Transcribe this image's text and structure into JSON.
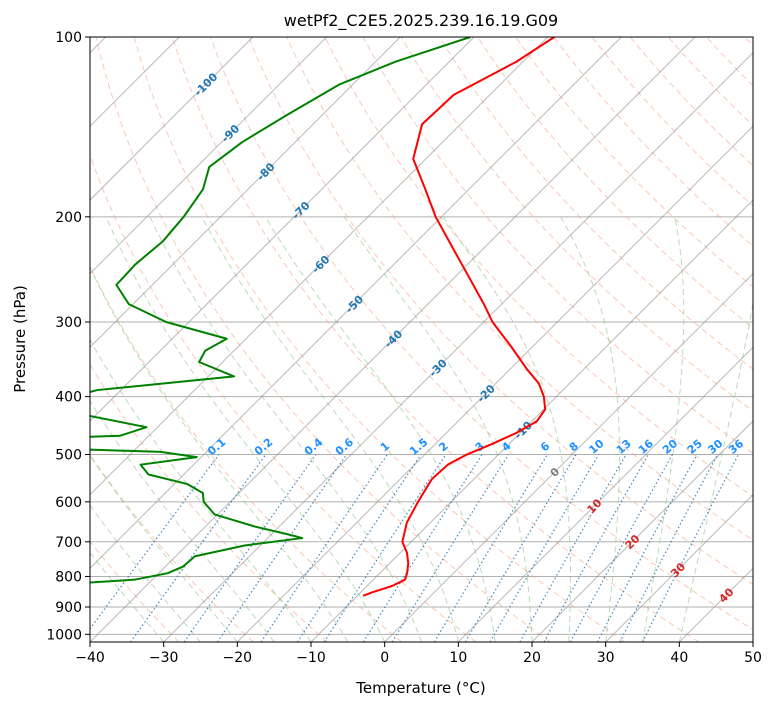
{
  "chart_data": {
    "type": "skew-t",
    "title": "wetPf2_C2E5.2025.239.16.19.G09",
    "xlabel": "Temperature (°C)",
    "ylabel": "Pressure (hPa)",
    "xlim": [
      -40,
      50
    ],
    "ylim": [
      1030,
      100
    ],
    "y_scale": "log",
    "grid": true,
    "x_ticks": [
      -40,
      -30,
      -20,
      -10,
      0,
      10,
      20,
      30,
      40,
      50
    ],
    "y_ticks": [
      100,
      200,
      300,
      400,
      500,
      600,
      700,
      800,
      900,
      1000
    ],
    "colors": {
      "temperature": "#ff0000",
      "dewpoint": "#008000",
      "dry_adiabat": "#f4a582",
      "moist_adiabat": "#7fbf7b",
      "mixing_ratio": "#1f77b4",
      "skewed_isotherm": "#8c8c8c",
      "mixing_label": "#1e90ff",
      "dewpoint_label": "#1f77b4",
      "temp_label": "#d62728"
    },
    "temperature_profile": {
      "pressure": [
        100,
        110,
        125,
        140,
        160,
        180,
        200,
        220,
        250,
        280,
        300,
        330,
        360,
        380,
        400,
        420,
        440,
        460,
        480,
        500,
        520,
        550,
        600,
        650,
        700,
        730,
        760,
        790,
        810,
        830,
        850,
        862
      ],
      "temperature": [
        -59.1,
        -60.9,
        -64.9,
        -65.2,
        -61.7,
        -55.9,
        -50.8,
        -45.6,
        -38.6,
        -32.4,
        -28.8,
        -22.9,
        -17.7,
        -14.2,
        -11.7,
        -9.8,
        -9.3,
        -10.5,
        -12.3,
        -14.3,
        -15.5,
        -15.7,
        -14.5,
        -13.2,
        -11.2,
        -9.1,
        -7.5,
        -6.3,
        -5.7,
        -6.6,
        -8.4,
        -9.2
      ]
    },
    "dewpoint_profile": {
      "pressure": [
        100,
        110,
        120,
        135,
        150,
        165,
        180,
        200,
        220,
        240,
        260,
        280,
        300,
        320,
        335,
        350,
        370,
        390,
        410,
        430,
        450,
        465,
        475,
        480,
        485,
        495,
        505,
        520,
        540,
        560,
        580,
        600,
        630,
        660,
        680,
        690,
        710,
        740,
        770,
        790,
        810,
        830,
        842,
        850,
        858,
        862
      ],
      "dewpoint": [
        -70.5,
        -77.3,
        -81.8,
        -84.8,
        -87.2,
        -88.3,
        -86.1,
        -85.0,
        -84.5,
        -85.1,
        -84.9,
        -80.6,
        -73.1,
        -62.6,
        -63.9,
        -63.2,
        -56.5,
        -73.2,
        -78.4,
        -71.2,
        -61.5,
        -63.9,
        -85.0,
        -88.0,
        -78.9,
        -56.2,
        -50.6,
        -57.2,
        -54.8,
        -48.3,
        -44.9,
        -43.6,
        -40.4,
        -33.3,
        -27.8,
        -25.3,
        -32.1,
        -37.4,
        -37.6,
        -38.8,
        -42.4,
        -55.3,
        -77.4,
        -81.5,
        -55.0,
        -47.8
      ]
    },
    "isotherm_labels": [
      "-100",
      "-90",
      "-80",
      "-70",
      "-60",
      "-50",
      "-40",
      "-30",
      "-20",
      "-10",
      "0",
      "10",
      "20",
      "30",
      "40"
    ],
    "mixing_ratio_labels": [
      "0.1",
      "0.2",
      "0.4",
      "0.6",
      "1",
      "1.5",
      "2",
      "3",
      "4",
      "6",
      "8",
      "10",
      "13",
      "16",
      "20",
      "25",
      "30",
      "36"
    ]
  }
}
